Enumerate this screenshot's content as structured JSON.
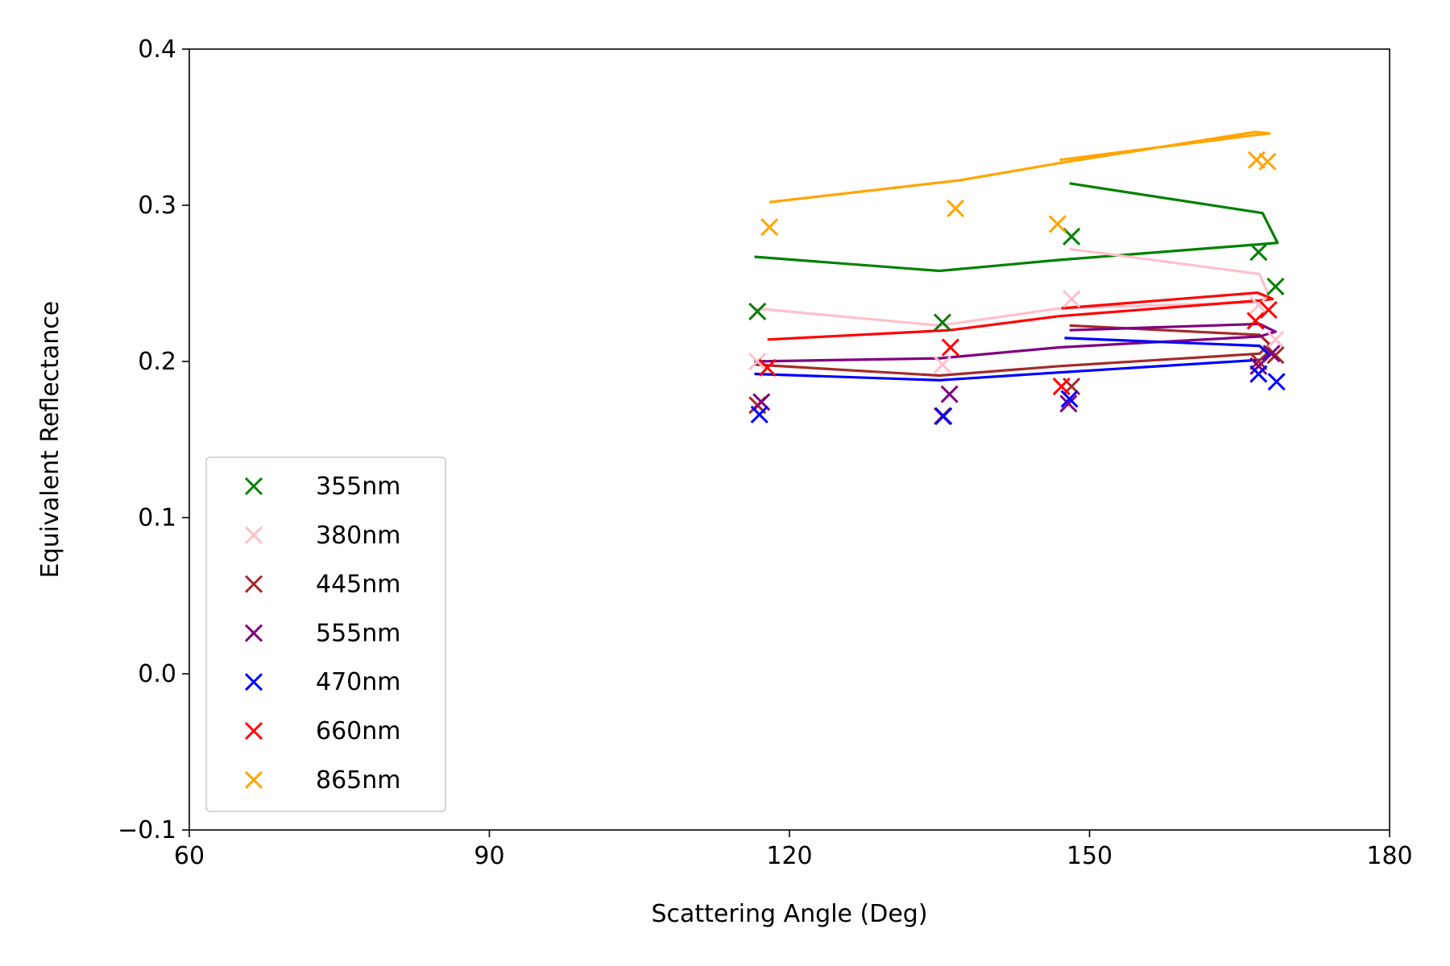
{
  "chart_data": {
    "type": "scatter",
    "title": "",
    "xlabel": "Scattering Angle (Deg)",
    "ylabel": "Equivalent Reflectance",
    "xlim": [
      60,
      180
    ],
    "ylim": [
      -0.1,
      0.4
    ],
    "xticks": [
      60,
      90,
      120,
      150,
      180
    ],
    "xtick_labels": [
      "60",
      "90",
      "120",
      "150",
      "180"
    ],
    "yticks": [
      -0.1,
      0.0,
      0.1,
      0.2,
      0.3,
      0.4
    ],
    "ytick_labels": [
      "−0.1",
      "0.0",
      "0.1",
      "0.2",
      "0.3",
      "0.4"
    ],
    "grid": false,
    "legend_position": "lower-left",
    "series": [
      {
        "name": "355nm",
        "color": "#008000",
        "points": [
          [
            116.8,
            0.232
          ],
          [
            135.3,
            0.225
          ],
          [
            148.2,
            0.28
          ],
          [
            166.9,
            0.27
          ],
          [
            168.6,
            0.248
          ]
        ],
        "line": [
          [
            116.5,
            0.267
          ],
          [
            135.0,
            0.258
          ],
          [
            147.0,
            0.265
          ],
          [
            167.0,
            0.275
          ],
          [
            168.8,
            0.276
          ],
          [
            167.3,
            0.295
          ],
          [
            148.0,
            0.314
          ]
        ]
      },
      {
        "name": "380nm",
        "color": "#ffc0cb",
        "points": [
          [
            116.8,
            0.2
          ],
          [
            135.3,
            0.198
          ],
          [
            148.2,
            0.24
          ],
          [
            166.9,
            0.236
          ],
          [
            168.6,
            0.214
          ]
        ],
        "line": [
          [
            116.5,
            0.234
          ],
          [
            135.0,
            0.223
          ],
          [
            147.0,
            0.234
          ],
          [
            167.0,
            0.238
          ],
          [
            168.0,
            0.241
          ],
          [
            167.0,
            0.256
          ],
          [
            148.0,
            0.272
          ]
        ]
      },
      {
        "name": "445nm",
        "color": "#a52a2a",
        "points": [
          [
            116.8,
            0.172
          ],
          [
            135.3,
            0.165
          ],
          [
            148.2,
            0.184
          ],
          [
            166.9,
            0.2
          ],
          [
            168.6,
            0.204
          ]
        ],
        "line": [
          [
            116.5,
            0.198
          ],
          [
            135.0,
            0.191
          ],
          [
            147.0,
            0.197
          ],
          [
            167.0,
            0.205
          ],
          [
            168.0,
            0.211
          ],
          [
            167.0,
            0.217
          ],
          [
            148.0,
            0.223
          ]
        ]
      },
      {
        "name": "555nm",
        "color": "#800080",
        "points": [
          [
            117.2,
            0.174
          ],
          [
            136.0,
            0.179
          ],
          [
            147.9,
            0.173
          ],
          [
            166.9,
            0.197
          ],
          [
            168.2,
            0.205
          ]
        ],
        "line": [
          [
            116.5,
            0.2
          ],
          [
            135.0,
            0.202
          ],
          [
            147.0,
            0.209
          ],
          [
            167.0,
            0.216
          ],
          [
            168.6,
            0.219
          ],
          [
            167.0,
            0.224
          ],
          [
            148.0,
            0.22
          ]
        ]
      },
      {
        "name": "470nm",
        "color": "#0000ff",
        "points": [
          [
            117.0,
            0.166
          ],
          [
            135.4,
            0.165
          ],
          [
            148.0,
            0.176
          ],
          [
            166.9,
            0.192
          ],
          [
            168.7,
            0.187
          ]
        ],
        "line": [
          [
            116.5,
            0.192
          ],
          [
            135.0,
            0.188
          ],
          [
            147.0,
            0.193
          ],
          [
            167.0,
            0.201
          ],
          [
            168.0,
            0.204
          ],
          [
            167.0,
            0.21
          ],
          [
            147.5,
            0.215
          ]
        ]
      },
      {
        "name": "660nm",
        "color": "#ff0000",
        "points": [
          [
            117.8,
            0.196
          ],
          [
            136.1,
            0.209
          ],
          [
            147.2,
            0.184
          ],
          [
            166.6,
            0.226
          ],
          [
            167.9,
            0.233
          ]
        ],
        "line": [
          [
            117.8,
            0.214
          ],
          [
            136.0,
            0.22
          ],
          [
            147.0,
            0.229
          ],
          [
            167.0,
            0.239
          ],
          [
            168.3,
            0.24
          ],
          [
            166.8,
            0.244
          ],
          [
            147.2,
            0.234
          ]
        ]
      },
      {
        "name": "865nm",
        "color": "#ffa500",
        "points": [
          [
            118.0,
            0.286
          ],
          [
            136.6,
            0.298
          ],
          [
            146.8,
            0.288
          ],
          [
            166.7,
            0.329
          ],
          [
            167.8,
            0.328
          ]
        ],
        "line": [
          [
            118.0,
            0.302
          ],
          [
            137.0,
            0.316
          ],
          [
            147.0,
            0.327
          ],
          [
            166.6,
            0.347
          ],
          [
            168.0,
            0.346
          ],
          [
            166.6,
            0.345
          ],
          [
            147.0,
            0.329
          ]
        ]
      }
    ]
  }
}
